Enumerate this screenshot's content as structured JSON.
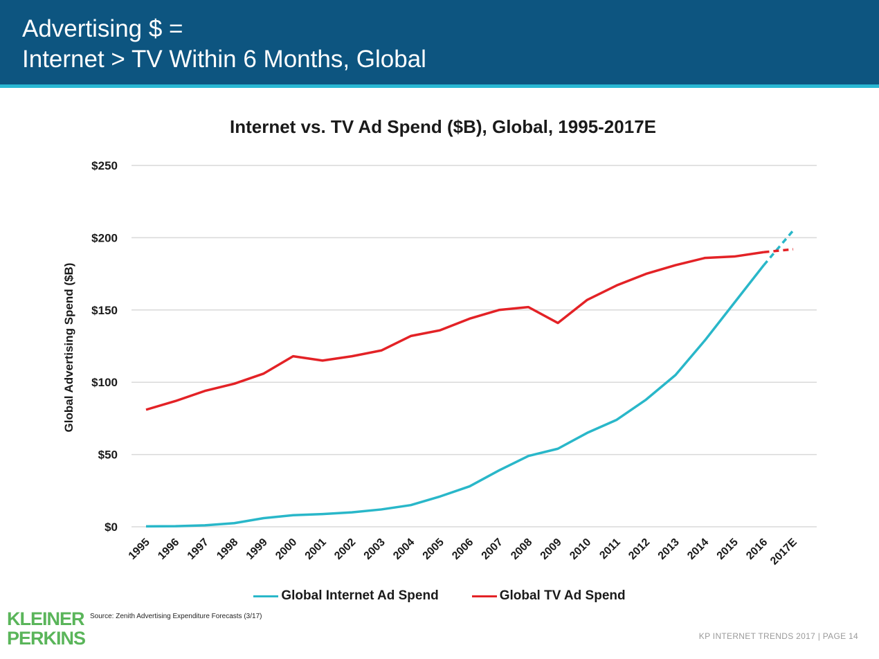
{
  "header": {
    "title_line1": "Advertising $ =",
    "title_line2": "Internet > TV Within 6 Months, Global"
  },
  "colors": {
    "header_bg": "#0d5580",
    "header_accent": "#29b7d3",
    "internet": "#29b7c9",
    "tv": "#e32226",
    "grid": "#d9d9d9",
    "logo": "#5ab55a"
  },
  "chart_data": {
    "type": "line",
    "title": "Internet vs. TV Ad Spend ($B), Global, 1995-2017E",
    "xlabel": "",
    "ylabel": "Global Advertising Spend ($B)",
    "categories": [
      "1995",
      "1996",
      "1997",
      "1998",
      "1999",
      "2000",
      "2001",
      "2002",
      "2003",
      "2004",
      "2005",
      "2006",
      "2007",
      "2008",
      "2009",
      "2010",
      "2011",
      "2012",
      "2013",
      "2014",
      "2015",
      "2016",
      "2017E"
    ],
    "series": [
      {
        "name": "Global Internet Ad Spend",
        "values": [
          0.3,
          0.4,
          1,
          2.5,
          6,
          8,
          8.8,
          10,
          12,
          15,
          21,
          28,
          39,
          49,
          54,
          65,
          74,
          88,
          105,
          129,
          155,
          181,
          205
        ],
        "projected_from_index": 21
      },
      {
        "name": "Global TV Ad Spend",
        "values": [
          81,
          87,
          94,
          99,
          106,
          118,
          115,
          118,
          122,
          132,
          136,
          144,
          150,
          152,
          141,
          157,
          167,
          175,
          181,
          186,
          187,
          190,
          192
        ],
        "projected_from_index": 21
      }
    ],
    "ylim": [
      0,
      250
    ],
    "yticks": [
      0,
      50,
      100,
      150,
      200,
      250
    ],
    "ytick_labels": [
      "$0",
      "$50",
      "$100",
      "$150",
      "$200",
      "$250"
    ],
    "grid": true,
    "legend_position": "bottom"
  },
  "legend": {
    "internet_label": "Global Internet Ad Spend",
    "tv_label": "Global TV Ad Spend"
  },
  "source": "Source: Zenith Advertising Expenditure Forecasts (3/17)",
  "logo": {
    "line1": "KLEINER",
    "line2": "PERKINS"
  },
  "footer": "KP INTERNET TRENDS 2017  |  PAGE 14"
}
